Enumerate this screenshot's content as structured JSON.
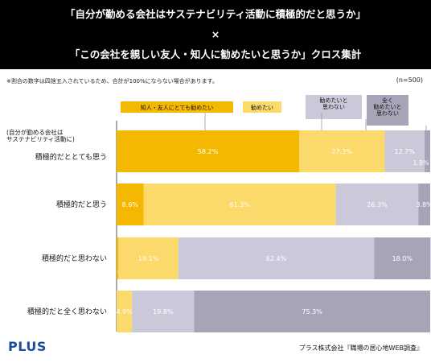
{
  "header": {
    "line1": "「自分が勤める会社はサステナビリティ活動に積極的だと思うか」",
    "line2": "×",
    "line3": "「この会社を親しい友人・知人に勧めたいと思うか」クロス集計"
  },
  "note": "※割合の数字は四捨五入されているため、合計が100%にならない場合があります。",
  "n_label": "(n=500)",
  "footer": {
    "logo": "PLUS",
    "source": "プラス株式会社『職場の居心地WEB調査』"
  },
  "colors": {
    "c0": "#f5b800",
    "c1": "#fbd96a",
    "c2": "#cbc9d9",
    "c3": "#a7a4b8"
  },
  "chart_data": {
    "type": "bar",
    "orientation": "horizontal",
    "stacked": true,
    "percent": true,
    "xlim": [
      0,
      100
    ],
    "category_title": "(自分が勤める会社は\nサステナビリティ活動に)",
    "categories": [
      "積極的だととても思う",
      "積極的だと思う",
      "積極的だと思わない",
      "積極的だと全く思わない"
    ],
    "series": [
      {
        "name": "知人・友人にとても勧めたい",
        "values": [
          58.2,
          8.6,
          0.6,
          0.0
        ]
      },
      {
        "name": "勧めたい",
        "values": [
          27.3,
          61.3,
          19.1,
          4.9
        ]
      },
      {
        "name": "勧めたいと\n思わない",
        "values": [
          12.7,
          26.3,
          62.4,
          19.8
        ]
      },
      {
        "name": "全く\n勧めたいと\n思わない",
        "values": [
          1.8,
          3.8,
          18.0,
          75.3
        ]
      }
    ],
    "data_labels": [
      [
        "58.2%",
        "27.3%",
        "12.7%",
        "1.8%"
      ],
      [
        "8.6%",
        "61.3%",
        "26.3%",
        "3.8%"
      ],
      [
        "0.6%",
        "19.1%",
        "62.4%",
        "18.0%"
      ],
      [
        "",
        "4.9%",
        "19.8%",
        "75.3%"
      ]
    ]
  }
}
